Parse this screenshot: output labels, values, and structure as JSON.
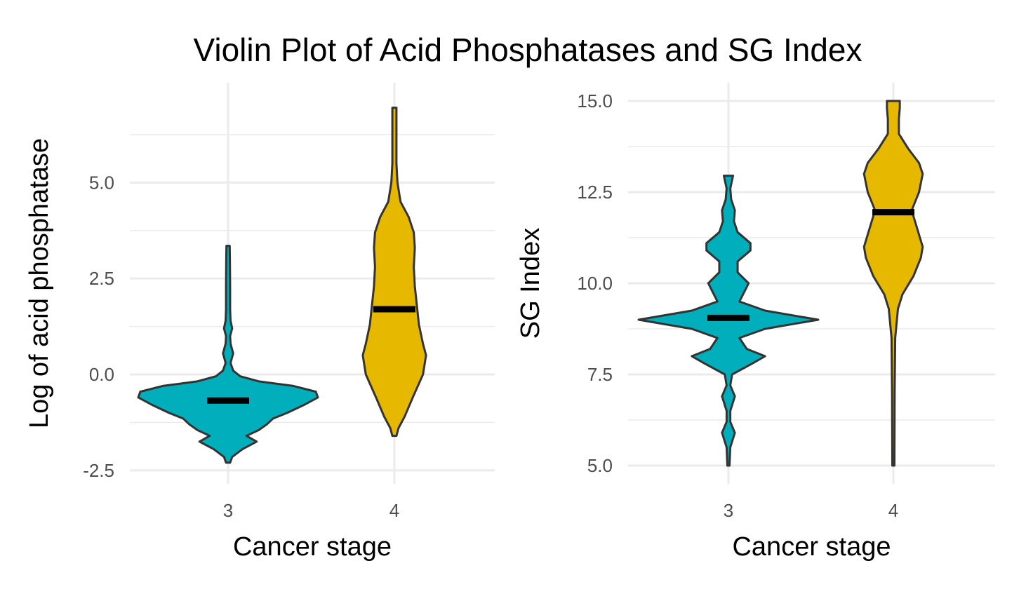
{
  "title": "Violin Plot of Acid Phosphatases and SG Index",
  "colors": {
    "stage3": "#00AFBB",
    "stage4": "#E7B800",
    "outline": "#333333",
    "median": "#000000",
    "grid": "#ebebeb"
  },
  "chart_data": [
    {
      "type": "violin",
      "xlabel": "Cancer stage",
      "ylabel": "Log of acid phosphatase",
      "categories": [
        "3",
        "4"
      ],
      "yticks": [
        -2.5,
        0.0,
        2.5,
        5.0
      ],
      "ytick_labels": [
        "-2.5",
        "0.0",
        "2.5",
        "5.0"
      ],
      "ylim": [
        -2.85,
        7.6
      ],
      "grid": true,
      "series": [
        {
          "category": "3",
          "color": "#00AFBB",
          "median": -0.68,
          "min": -2.3,
          "max": 3.35,
          "density": [
            [
              -2.3,
              0.01
            ],
            [
              -2.15,
              0.02
            ],
            [
              -1.95,
              0.07
            ],
            [
              -1.75,
              0.14
            ],
            [
              -1.6,
              0.09
            ],
            [
              -1.45,
              0.15
            ],
            [
              -1.3,
              0.19
            ],
            [
              -1.15,
              0.22
            ],
            [
              -1.0,
              0.29
            ],
            [
              -0.8,
              0.37
            ],
            [
              -0.6,
              0.44
            ],
            [
              -0.45,
              0.43
            ],
            [
              -0.3,
              0.32
            ],
            [
              -0.18,
              0.15
            ],
            [
              -0.05,
              0.06
            ],
            [
              0.1,
              0.025
            ],
            [
              0.3,
              0.012
            ],
            [
              0.55,
              0.025
            ],
            [
              0.8,
              0.012
            ],
            [
              1.0,
              0.01
            ],
            [
              1.2,
              0.02
            ],
            [
              1.4,
              0.012
            ],
            [
              1.7,
              0.01
            ],
            [
              2.3,
              0.01
            ],
            [
              3.0,
              0.009
            ],
            [
              3.35,
              0.008
            ]
          ]
        },
        {
          "category": "4",
          "color": "#E7B800",
          "median": 1.7,
          "min": -1.6,
          "max": 6.95,
          "density": [
            [
              -1.6,
              0.01
            ],
            [
              -1.4,
              0.02
            ],
            [
              -1.1,
              0.05
            ],
            [
              -0.6,
              0.09
            ],
            [
              0.0,
              0.14
            ],
            [
              0.5,
              0.155
            ],
            [
              0.8,
              0.14
            ],
            [
              1.3,
              0.12
            ],
            [
              1.8,
              0.11
            ],
            [
              2.3,
              0.1
            ],
            [
              2.8,
              0.095
            ],
            [
              3.3,
              0.1
            ],
            [
              3.7,
              0.095
            ],
            [
              4.1,
              0.07
            ],
            [
              4.5,
              0.03
            ],
            [
              5.0,
              0.015
            ],
            [
              5.5,
              0.01
            ],
            [
              6.2,
              0.01
            ],
            [
              6.95,
              0.01
            ]
          ]
        }
      ]
    },
    {
      "type": "violin",
      "xlabel": "Cancer stage",
      "ylabel": "SG Index",
      "categories": [
        "3",
        "4"
      ],
      "yticks": [
        5.0,
        7.5,
        10.0,
        12.5,
        15.0
      ],
      "ytick_labels": [
        "5.0",
        "7.5",
        "10.0",
        "12.5",
        "15.0"
      ],
      "ylim": [
        4.5,
        15.5
      ],
      "grid": true,
      "series": [
        {
          "category": "3",
          "color": "#00AFBB",
          "median": 9.05,
          "min": 5.0,
          "max": 12.95,
          "density": [
            [
              5.0,
              0.005
            ],
            [
              5.5,
              0.01
            ],
            [
              5.9,
              0.035
            ],
            [
              6.2,
              0.01
            ],
            [
              6.5,
              0.01
            ],
            [
              6.9,
              0.035
            ],
            [
              7.2,
              0.01
            ],
            [
              7.5,
              0.02
            ],
            [
              7.8,
              0.13
            ],
            [
              8.0,
              0.2
            ],
            [
              8.2,
              0.1
            ],
            [
              8.5,
              0.06
            ],
            [
              8.75,
              0.2
            ],
            [
              9.0,
              0.49
            ],
            [
              9.25,
              0.2
            ],
            [
              9.5,
              0.06
            ],
            [
              9.8,
              0.09
            ],
            [
              10.0,
              0.11
            ],
            [
              10.3,
              0.05
            ],
            [
              10.6,
              0.05
            ],
            [
              10.9,
              0.12
            ],
            [
              11.1,
              0.12
            ],
            [
              11.4,
              0.05
            ],
            [
              11.7,
              0.03
            ],
            [
              12.0,
              0.035
            ],
            [
              12.3,
              0.015
            ],
            [
              12.6,
              0.01
            ],
            [
              12.95,
              0.025
            ]
          ]
        },
        {
          "category": "4",
          "color": "#E7B800",
          "median": 11.95,
          "min": 5.0,
          "max": 15.0,
          "density": [
            [
              5.0,
              0.005
            ],
            [
              7.0,
              0.007
            ],
            [
              8.5,
              0.01
            ],
            [
              9.3,
              0.025
            ],
            [
              9.7,
              0.05
            ],
            [
              10.2,
              0.11
            ],
            [
              10.7,
              0.15
            ],
            [
              11.0,
              0.16
            ],
            [
              11.5,
              0.13
            ],
            [
              12.0,
              0.1
            ],
            [
              12.5,
              0.14
            ],
            [
              13.0,
              0.16
            ],
            [
              13.3,
              0.14
            ],
            [
              13.7,
              0.08
            ],
            [
              14.1,
              0.03
            ],
            [
              14.5,
              0.03
            ],
            [
              14.8,
              0.035
            ],
            [
              15.0,
              0.035
            ]
          ]
        }
      ]
    }
  ]
}
